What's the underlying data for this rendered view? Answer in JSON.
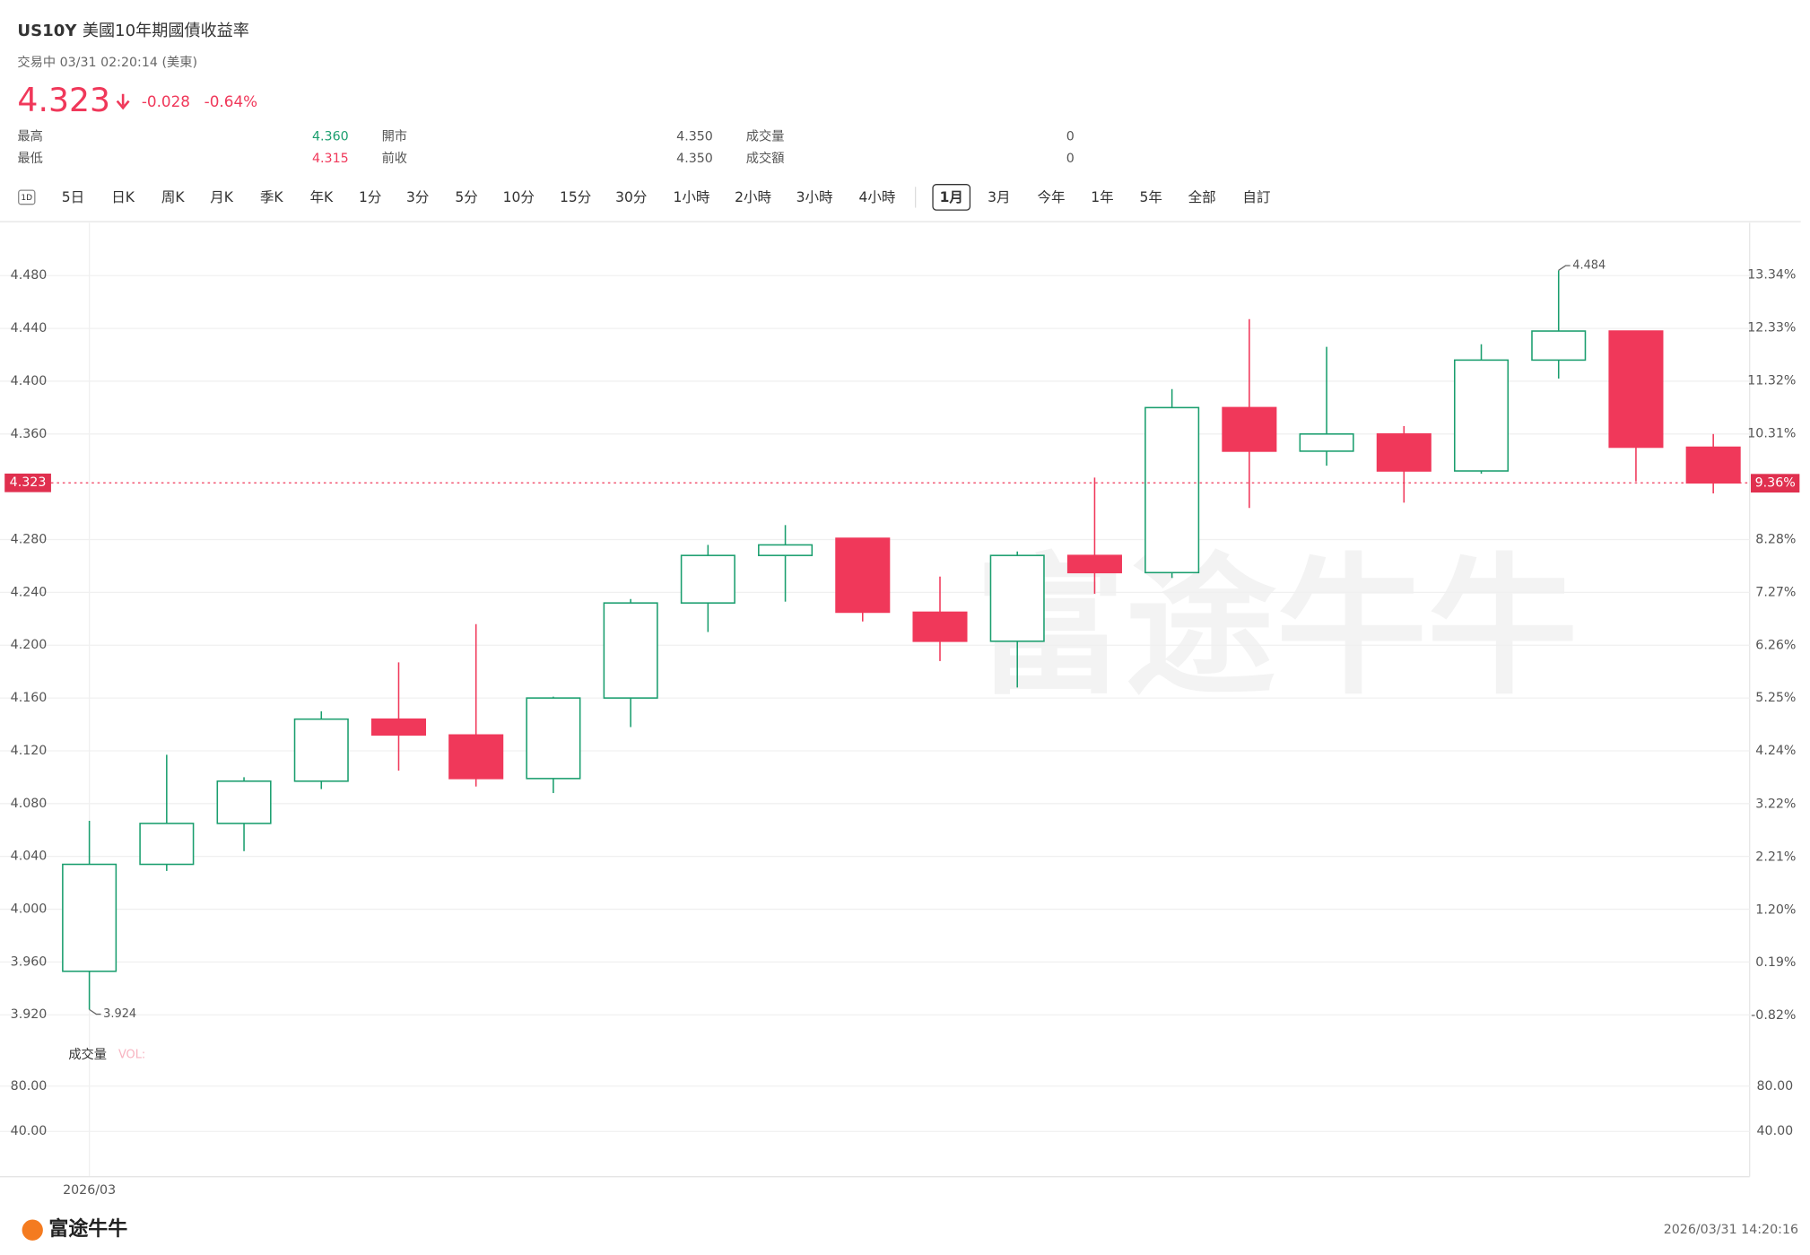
{
  "header": {
    "symbol": "US10Y",
    "name": "美國10年期國債收益率",
    "status": "交易中 03/31 02:20:14 (美東)",
    "price": "4.323",
    "change": "-0.028",
    "change_pct": "-0.64%",
    "stats": [
      {
        "label": "最高",
        "value": "4.360"
      },
      {
        "label": "開市",
        "value": "4.350"
      },
      {
        "label": "成交量",
        "value": "0"
      },
      {
        "label": "最低",
        "value": "4.315"
      },
      {
        "label": "前收",
        "value": "4.350"
      },
      {
        "label": "成交額",
        "value": "0"
      }
    ]
  },
  "toolbar": {
    "icon": "1D",
    "items": [
      "5日",
      "日K",
      "周K",
      "月K",
      "季K",
      "年K",
      "1分",
      "3分",
      "5分",
      "10分",
      "15分",
      "30分",
      "1小時",
      "2小時",
      "3小時",
      "4小時",
      "1月",
      "3月",
      "今年",
      "1年",
      "5年",
      "全部",
      "自訂"
    ],
    "selected": "1月"
  },
  "chart_data": {
    "type": "candlestick",
    "up_color": "#1a9e6e",
    "down_color": "#f0385a",
    "categories": [
      "2026/03",
      null,
      null,
      null,
      null,
      null,
      null,
      null,
      null,
      null,
      null,
      null,
      null,
      null,
      null,
      null,
      null,
      null,
      null,
      null,
      null,
      null
    ],
    "open": [
      3.953,
      4.034,
      4.065,
      4.097,
      4.144,
      4.132,
      4.099,
      4.16,
      4.232,
      4.268,
      4.281,
      4.225,
      4.203,
      4.268,
      4.255,
      4.38,
      4.347,
      4.36,
      4.332,
      4.416,
      4.438,
      4.35
    ],
    "high": [
      4.067,
      4.117,
      4.1,
      4.15,
      4.187,
      4.216,
      4.161,
      4.235,
      4.276,
      4.291,
      4.281,
      4.252,
      4.271,
      4.327,
      4.394,
      4.447,
      4.426,
      4.366,
      4.428,
      4.484,
      4.438,
      4.36
    ],
    "low": [
      3.924,
      4.029,
      4.044,
      4.091,
      4.105,
      4.093,
      4.088,
      4.138,
      4.21,
      4.233,
      4.218,
      4.188,
      4.168,
      4.239,
      4.251,
      4.304,
      4.336,
      4.308,
      4.33,
      4.402,
      4.324,
      4.315
    ],
    "close": [
      4.034,
      4.065,
      4.097,
      4.144,
      4.132,
      4.099,
      4.16,
      4.232,
      4.268,
      4.276,
      4.225,
      4.203,
      4.268,
      4.255,
      4.38,
      4.347,
      4.36,
      4.332,
      4.416,
      4.438,
      4.35,
      4.323
    ],
    "ylim": [
      3.902,
      4.52
    ],
    "yticks": [
      {
        "value": 4.48,
        "label": "4.480"
      },
      {
        "value": 4.44,
        "label": "4.440"
      },
      {
        "value": 4.4,
        "label": "4.400"
      },
      {
        "value": 4.36,
        "label": "4.360"
      },
      {
        "value": 4.28,
        "label": "4.280"
      },
      {
        "value": 4.24,
        "label": "4.240"
      },
      {
        "value": 4.2,
        "label": "4.200"
      },
      {
        "value": 4.16,
        "label": "4.160"
      },
      {
        "value": 4.12,
        "label": "4.120"
      },
      {
        "value": 4.08,
        "label": "4.080"
      },
      {
        "value": 4.04,
        "label": "4.040"
      },
      {
        "value": 4.0,
        "label": "4.000"
      },
      {
        "value": 3.96,
        "label": "3.960"
      },
      {
        "value": 3.92,
        "label": "3.920"
      }
    ],
    "y2lim": [
      -1.26,
      14.34
    ],
    "y2ticks": [
      {
        "value": 13.34,
        "label": "13.34%"
      },
      {
        "value": 12.33,
        "label": "12.33%"
      },
      {
        "value": 11.32,
        "label": "11.32%"
      },
      {
        "value": 10.31,
        "label": "10.31%"
      },
      {
        "value": 8.28,
        "label": "8.28%"
      },
      {
        "value": 7.27,
        "label": "7.27%"
      },
      {
        "value": 6.26,
        "label": "6.26%"
      },
      {
        "value": 5.25,
        "label": "5.25%"
      },
      {
        "value": 4.24,
        "label": "4.24%"
      },
      {
        "value": 3.22,
        "label": "3.22%"
      },
      {
        "value": 2.21,
        "label": "2.21%"
      },
      {
        "value": 1.2,
        "label": "1.20%"
      },
      {
        "value": 0.19,
        "label": "0.19%"
      },
      {
        "value": -0.82,
        "label": "-0.82%"
      }
    ],
    "last": {
      "value": 4.323,
      "label": "4.323"
    },
    "last_pct": {
      "value": 9.36,
      "label": "9.36%"
    },
    "volume_title": "成交量",
    "volume_label": "VOL:",
    "vol_ylim": [
      0,
      120
    ],
    "vol_ticks": [
      {
        "value": 80,
        "label": "80.00"
      },
      {
        "value": 40,
        "label": "40.00"
      }
    ],
    "grid": true
  },
  "footer": {
    "brand": "富途牛牛",
    "timestamp": "2026/03/31 14:20:16"
  }
}
